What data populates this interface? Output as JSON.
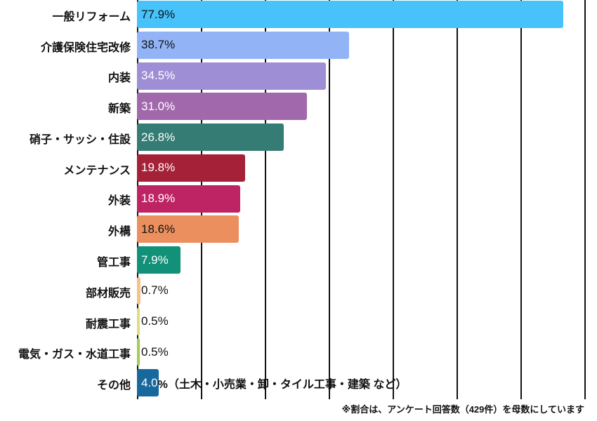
{
  "chart_data": {
    "type": "bar",
    "orientation": "horizontal",
    "title": "",
    "xlabel": "",
    "ylabel": "",
    "xlim": [
      0,
      81.8
    ],
    "grid": true,
    "grid_color": "#111111",
    "background": "#ffffff",
    "categories": [
      "一般リフォーム",
      "介護保険住宅改修",
      "内装",
      "新築",
      "硝子・サッシ・住設",
      "メンテナンス",
      "外装",
      "外構",
      "管工事",
      "部材販売",
      "耐震工事",
      "電気・ガス・水道工事",
      "その他"
    ],
    "values": [
      77.9,
      38.7,
      34.5,
      31.0,
      26.8,
      19.8,
      18.9,
      18.6,
      7.9,
      0.7,
      0.5,
      0.5,
      4.0
    ],
    "items": [
      {
        "label": "一般リフォーム",
        "value": 77.9,
        "display": "77.9%",
        "color": "#47C2FB",
        "value_color": "#111111"
      },
      {
        "label": "介護保険住宅改修",
        "value": 38.7,
        "display": "38.7%",
        "color": "#92B4F6",
        "value_color": "#111111"
      },
      {
        "label": "内装",
        "value": 34.5,
        "display": "34.5%",
        "color": "#9D8ED6",
        "value_color": "#ffffff"
      },
      {
        "label": "新築",
        "value": 31.0,
        "display": "31.0%",
        "color": "#A169AC",
        "value_color": "#ffffff"
      },
      {
        "label": "硝子・サッシ・住設",
        "value": 26.8,
        "display": "26.8%",
        "color": "#347C74",
        "value_color": "#ffffff"
      },
      {
        "label": "メンテナンス",
        "value": 19.8,
        "display": "19.8%",
        "color": "#A52138",
        "value_color": "#ffffff"
      },
      {
        "label": "外装",
        "value": 18.9,
        "display": "18.9%",
        "color": "#BE2464",
        "value_color": "#ffffff"
      },
      {
        "label": "外構",
        "value": 18.6,
        "display": "18.6%",
        "color": "#EC8F5E",
        "value_color": "#111111"
      },
      {
        "label": "管工事",
        "value": 7.9,
        "display": "7.9%",
        "color": "#129178",
        "value_color": "#ffffff"
      },
      {
        "label": "部材販売",
        "value": 0.7,
        "display": "0.7%",
        "color": "#F5C389",
        "value_color": "#111111"
      },
      {
        "label": "耐震工事",
        "value": 0.5,
        "display": "0.5%",
        "color": "#DFDD80",
        "value_color": "#111111"
      },
      {
        "label": "電気・ガス・水道工事",
        "value": 0.5,
        "display": "0.5%",
        "color": "#A3CC52",
        "value_color": "#111111"
      },
      {
        "label": "その他",
        "value": 4.0,
        "display": "4.0",
        "value_suffix": "%（土木・小売業・卸・タイル工事・建築 など）",
        "color": "#17689D",
        "value_color": "#ffffff",
        "suffix_color": "#111111"
      }
    ],
    "footnote": "※割合は、アンケート回答数（429件）を母数にしています"
  }
}
